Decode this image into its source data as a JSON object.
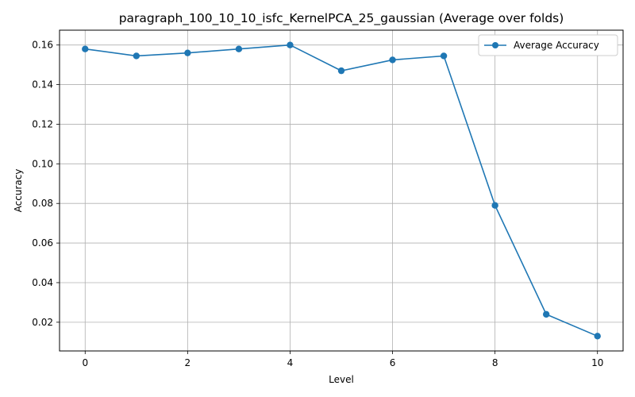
{
  "chart_data": {
    "type": "line",
    "title": "paragraph_100_10_10_isfc_KernelPCA_25_gaussian (Average over folds)",
    "xlabel": "Level",
    "ylabel": "Accuracy",
    "xlim": [
      -0.5,
      10.5
    ],
    "ylim": [
      0.0055,
      0.1675
    ],
    "xticks": [
      0,
      2,
      4,
      6,
      8,
      10
    ],
    "xtick_labels": [
      "0",
      "2",
      "4",
      "6",
      "8",
      "10"
    ],
    "yticks": [
      0.02,
      0.04,
      0.06,
      0.08,
      0.1,
      0.12,
      0.14,
      0.16
    ],
    "ytick_labels": [
      "0.02",
      "0.04",
      "0.06",
      "0.08",
      "0.10",
      "0.12",
      "0.14",
      "0.16"
    ],
    "grid": true,
    "legend_position": "top-right",
    "series": [
      {
        "name": "Average Accuracy",
        "color": "#1f77b4",
        "marker": "circle",
        "x": [
          0,
          1,
          2,
          3,
          4,
          5,
          6,
          7,
          8,
          9,
          10
        ],
        "values": [
          0.158,
          0.1545,
          0.156,
          0.158,
          0.16,
          0.147,
          0.1525,
          0.1545,
          0.079,
          0.024,
          0.013
        ]
      }
    ]
  }
}
